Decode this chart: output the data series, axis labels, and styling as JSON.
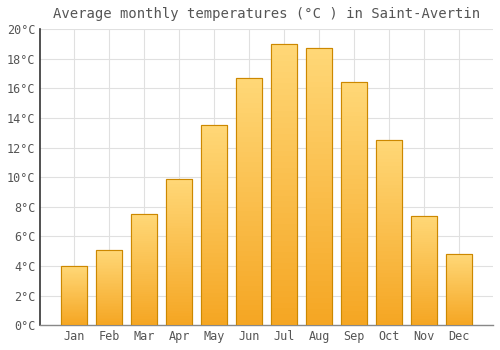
{
  "months": [
    "Jan",
    "Feb",
    "Mar",
    "Apr",
    "May",
    "Jun",
    "Jul",
    "Aug",
    "Sep",
    "Oct",
    "Nov",
    "Dec"
  ],
  "values": [
    4.0,
    5.1,
    7.5,
    9.9,
    13.5,
    16.7,
    19.0,
    18.7,
    16.4,
    12.5,
    7.4,
    4.8
  ],
  "title": "Average monthly temperatures (°C ) in Saint-Avertin",
  "bar_color_bottom": "#F5A623",
  "bar_color_top": "#FFD060",
  "bar_edge_color": "#CC8800",
  "background_color": "#FFFFFF",
  "grid_color": "#E0E0E0",
  "text_color": "#555555",
  "ylim": [
    0,
    20
  ],
  "yticks": [
    0,
    2,
    4,
    6,
    8,
    10,
    12,
    14,
    16,
    18,
    20
  ],
  "title_fontsize": 10,
  "tick_fontsize": 8.5
}
